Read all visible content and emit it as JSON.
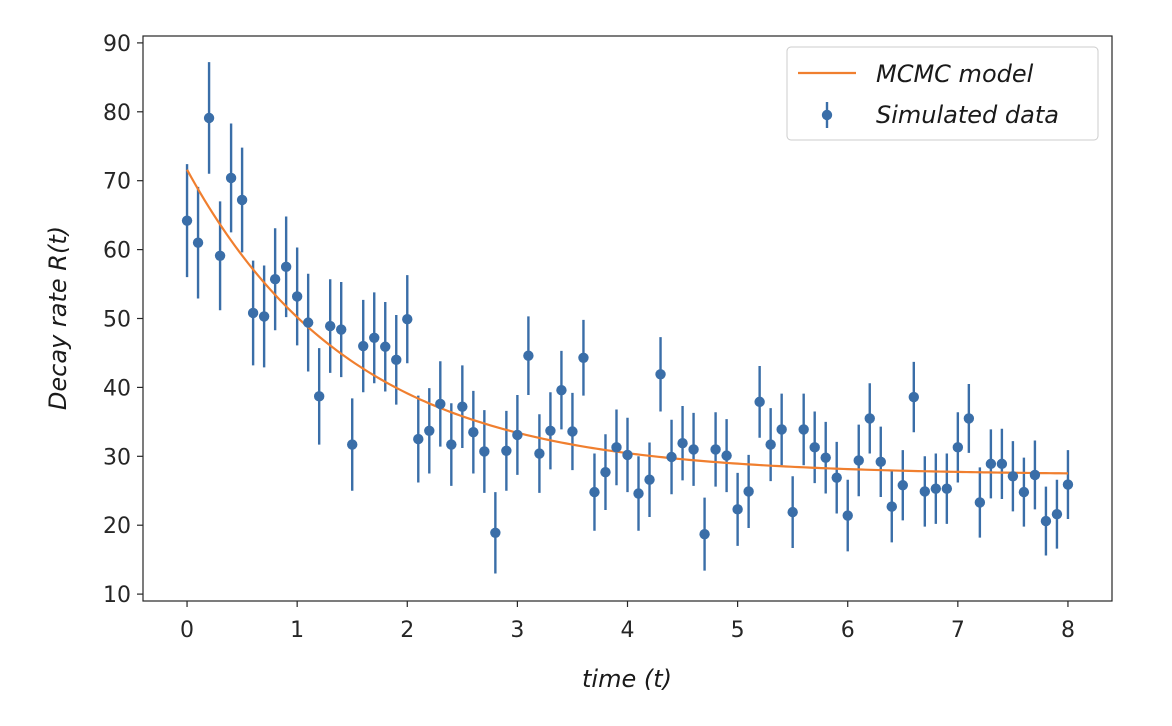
{
  "chart_data": {
    "type": "scatter",
    "title": "",
    "xlabel": "time (t)",
    "ylabel": "Decay rate R(t)",
    "xlim": [
      -0.4,
      8.4
    ],
    "ylim": [
      9,
      91
    ],
    "xticks": [
      0,
      1,
      2,
      3,
      4,
      5,
      6,
      7,
      8
    ],
    "yticks": [
      10,
      20,
      30,
      40,
      50,
      60,
      70,
      80,
      90
    ],
    "grid": false,
    "legend_position": "top-right",
    "colors": {
      "data": "#3a6ea8",
      "model": "#f07f2f"
    },
    "series": [
      {
        "name": "MCMC model",
        "kind": "line",
        "model": {
          "A": 44.3,
          "k": 0.66,
          "C": 27.3
        }
      },
      {
        "name": "Simulated data",
        "kind": "errorbar",
        "x": [
          0.0,
          0.1,
          0.2,
          0.3,
          0.4,
          0.5,
          0.6,
          0.7,
          0.8,
          0.9,
          1.0,
          1.1,
          1.2,
          1.3,
          1.4,
          1.5,
          1.6,
          1.7,
          1.8,
          1.9,
          2.0,
          2.1,
          2.2,
          2.3,
          2.4,
          2.5,
          2.6,
          2.7,
          2.8,
          2.9,
          3.0,
          3.1,
          3.2,
          3.3,
          3.4,
          3.5,
          3.6,
          3.7,
          3.8,
          3.9,
          4.0,
          4.1,
          4.2,
          4.3,
          4.4,
          4.5,
          4.6,
          4.7,
          4.8,
          4.9,
          5.0,
          5.1,
          5.2,
          5.3,
          5.4,
          5.5,
          5.6,
          5.7,
          5.8,
          5.9,
          6.0,
          6.1,
          6.2,
          6.3,
          6.4,
          6.5,
          6.6,
          6.7,
          6.8,
          6.9,
          7.0,
          7.1,
          7.2,
          7.3,
          7.4,
          7.5,
          7.6,
          7.7,
          7.8,
          7.9,
          8.0
        ],
        "y": [
          64.2,
          61.0,
          79.1,
          59.1,
          70.4,
          67.2,
          50.8,
          50.3,
          55.7,
          57.5,
          53.2,
          49.4,
          38.7,
          48.9,
          48.4,
          31.7,
          46.0,
          47.2,
          45.9,
          44.0,
          49.9,
          32.5,
          33.7,
          37.6,
          31.7,
          37.2,
          33.5,
          30.7,
          18.9,
          30.8,
          33.1,
          44.6,
          30.4,
          33.7,
          39.6,
          33.6,
          44.3,
          24.8,
          27.7,
          31.3,
          30.2,
          24.6,
          26.6,
          41.9,
          29.9,
          31.9,
          31.0,
          18.7,
          31.0,
          30.1,
          22.3,
          24.9,
          37.9,
          31.7,
          33.9,
          21.9,
          33.9,
          31.3,
          29.8,
          26.9,
          21.4,
          29.4,
          35.5,
          29.2,
          22.7,
          25.8,
          38.6,
          24.9,
          25.3,
          25.3,
          31.3,
          35.5,
          23.3,
          28.9,
          28.9,
          27.1,
          24.8,
          27.3,
          20.6,
          21.6,
          25.9
        ],
        "yerr": [
          8.2,
          8.1,
          8.1,
          7.9,
          7.9,
          7.6,
          7.6,
          7.4,
          7.4,
          7.3,
          7.1,
          7.1,
          7.0,
          6.8,
          6.9,
          6.7,
          6.7,
          6.6,
          6.5,
          6.5,
          6.4,
          6.3,
          6.2,
          6.2,
          6.0,
          6.0,
          6.0,
          6.0,
          5.9,
          5.8,
          5.8,
          5.7,
          5.7,
          5.6,
          5.7,
          5.6,
          5.5,
          5.6,
          5.5,
          5.5,
          5.4,
          5.4,
          5.4,
          5.4,
          5.4,
          5.4,
          5.3,
          5.3,
          5.4,
          5.3,
          5.3,
          5.3,
          5.2,
          5.3,
          5.2,
          5.2,
          5.2,
          5.2,
          5.2,
          5.2,
          5.2,
          5.2,
          5.1,
          5.1,
          5.2,
          5.1,
          5.1,
          5.1,
          5.1,
          5.1,
          5.1,
          5.0,
          5.1,
          5.0,
          5.1,
          5.1,
          5.0,
          5.0,
          5.0,
          5.0,
          5.0
        ]
      }
    ]
  }
}
